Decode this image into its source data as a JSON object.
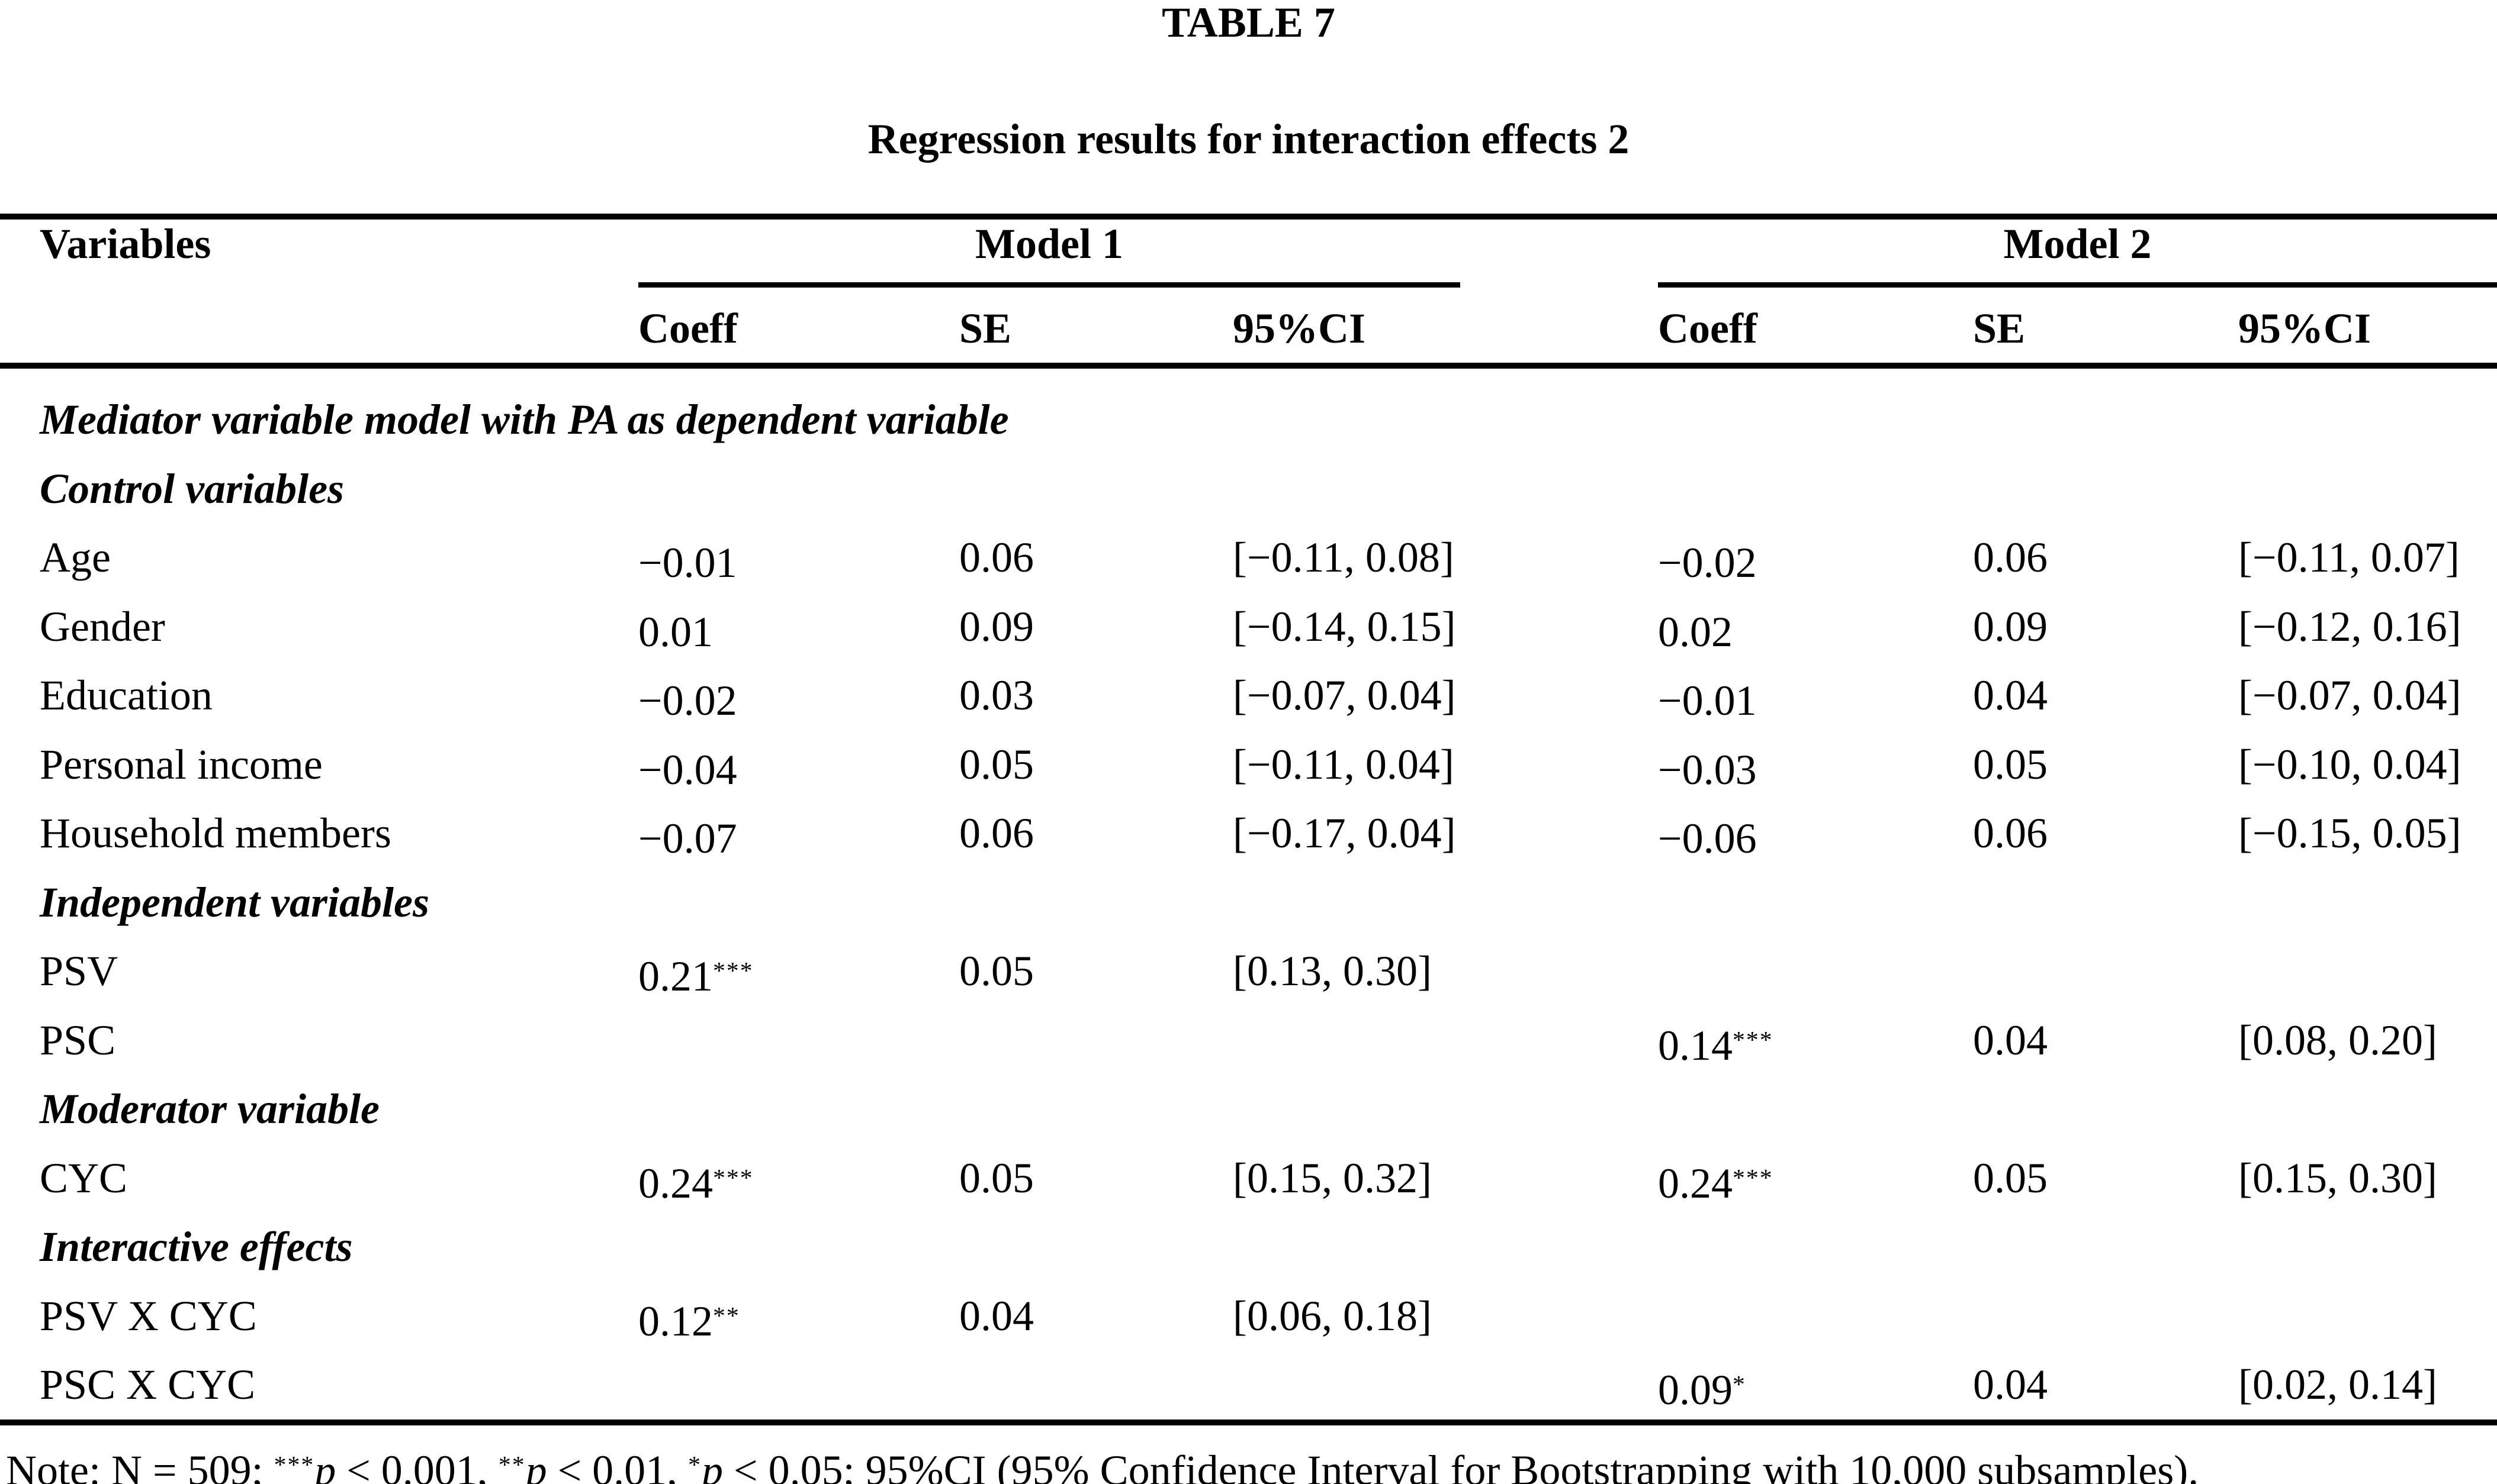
{
  "title": "TABLE 7",
  "subtitle": "Regression results for interaction effects 2",
  "table": {
    "header": {
      "variables": "Variables",
      "model1": "Model 1",
      "model2": "Model 2",
      "coeff": "Coeff",
      "se": "SE",
      "ci": "95%CI"
    },
    "rows": [
      {
        "type": "section",
        "label": "Mediator variable model with PA as dependent variable"
      },
      {
        "type": "section",
        "label": "Control variables"
      },
      {
        "type": "data",
        "label": "Age",
        "m1": {
          "v": "−0.01",
          "s": "",
          "se": "0.06",
          "ci": "[−0.11, 0.08]"
        },
        "m2": {
          "v": "−0.02",
          "s": "",
          "se": "0.06",
          "ci": "[−0.11, 0.07]"
        }
      },
      {
        "type": "data",
        "label": "Gender",
        "m1": {
          "v": "0.01",
          "s": "",
          "se": "0.09",
          "ci": "[−0.14, 0.15]"
        },
        "m2": {
          "v": "0.02",
          "s": "",
          "se": "0.09",
          "ci": "[−0.12, 0.16]"
        }
      },
      {
        "type": "data",
        "label": "Education",
        "m1": {
          "v": "−0.02",
          "s": "",
          "se": "0.03",
          "ci": "[−0.07, 0.04]"
        },
        "m2": {
          "v": "−0.01",
          "s": "",
          "se": "0.04",
          "ci": "[−0.07, 0.04]"
        }
      },
      {
        "type": "data",
        "label": "Personal income",
        "m1": {
          "v": "−0.04",
          "s": "",
          "se": "0.05",
          "ci": "[−0.11, 0.04]"
        },
        "m2": {
          "v": "−0.03",
          "s": "",
          "se": "0.05",
          "ci": "[−0.10, 0.04]"
        }
      },
      {
        "type": "data",
        "label": "Household members",
        "m1": {
          "v": "−0.07",
          "s": "",
          "se": "0.06",
          "ci": "[−0.17, 0.04]"
        },
        "m2": {
          "v": "−0.06",
          "s": "",
          "se": "0.06",
          "ci": "[−0.15, 0.05]"
        }
      },
      {
        "type": "section",
        "label": "Independent variables"
      },
      {
        "type": "data",
        "label": "PSV",
        "m1": {
          "v": "0.21",
          "s": "***",
          "se": "0.05",
          "ci": "[0.13, 0.30]"
        },
        "m2": {
          "v": "",
          "s": "",
          "se": "",
          "ci": ""
        }
      },
      {
        "type": "data",
        "label": "PSC",
        "m1": {
          "v": "",
          "s": "",
          "se": "",
          "ci": ""
        },
        "m2": {
          "v": "0.14",
          "s": "***",
          "se": "0.04",
          "ci": "[0.08, 0.20]"
        }
      },
      {
        "type": "section",
        "label": "Moderator variable"
      },
      {
        "type": "data",
        "label": "CYC",
        "m1": {
          "v": "0.24",
          "s": "***",
          "se": "0.05",
          "ci": "[0.15, 0.32]"
        },
        "m2": {
          "v": "0.24",
          "s": "***",
          "se": "0.05",
          "ci": "[0.15, 0.30]"
        }
      },
      {
        "type": "section",
        "label": "Interactive effects"
      },
      {
        "type": "data",
        "label": "PSV X CYC",
        "m1": {
          "v": "0.12",
          "s": "**",
          "se": "0.04",
          "ci": "[0.06, 0.18]"
        },
        "m2": {
          "v": "",
          "s": "",
          "se": "",
          "ci": ""
        }
      },
      {
        "type": "data",
        "label": "PSC X CYC",
        "m1": {
          "v": "",
          "s": "",
          "se": "",
          "ci": ""
        },
        "m2": {
          "v": "0.09",
          "s": "*",
          "se": "0.04",
          "ci": "[0.02, 0.14]"
        }
      }
    ]
  },
  "note": {
    "parts": [
      {
        "sup": "",
        "text": "Note: N = 509; "
      },
      {
        "sup": "***",
        "text": "p < 0.001, "
      },
      {
        "sup": "**",
        "text": "p < 0.01, "
      },
      {
        "sup": "*",
        "text": "p < 0.05; "
      },
      {
        "sup": "",
        "text": "95%CI (95% Confidence Interval for Bootstrapping with 10,000 subsamples)."
      }
    ]
  }
}
